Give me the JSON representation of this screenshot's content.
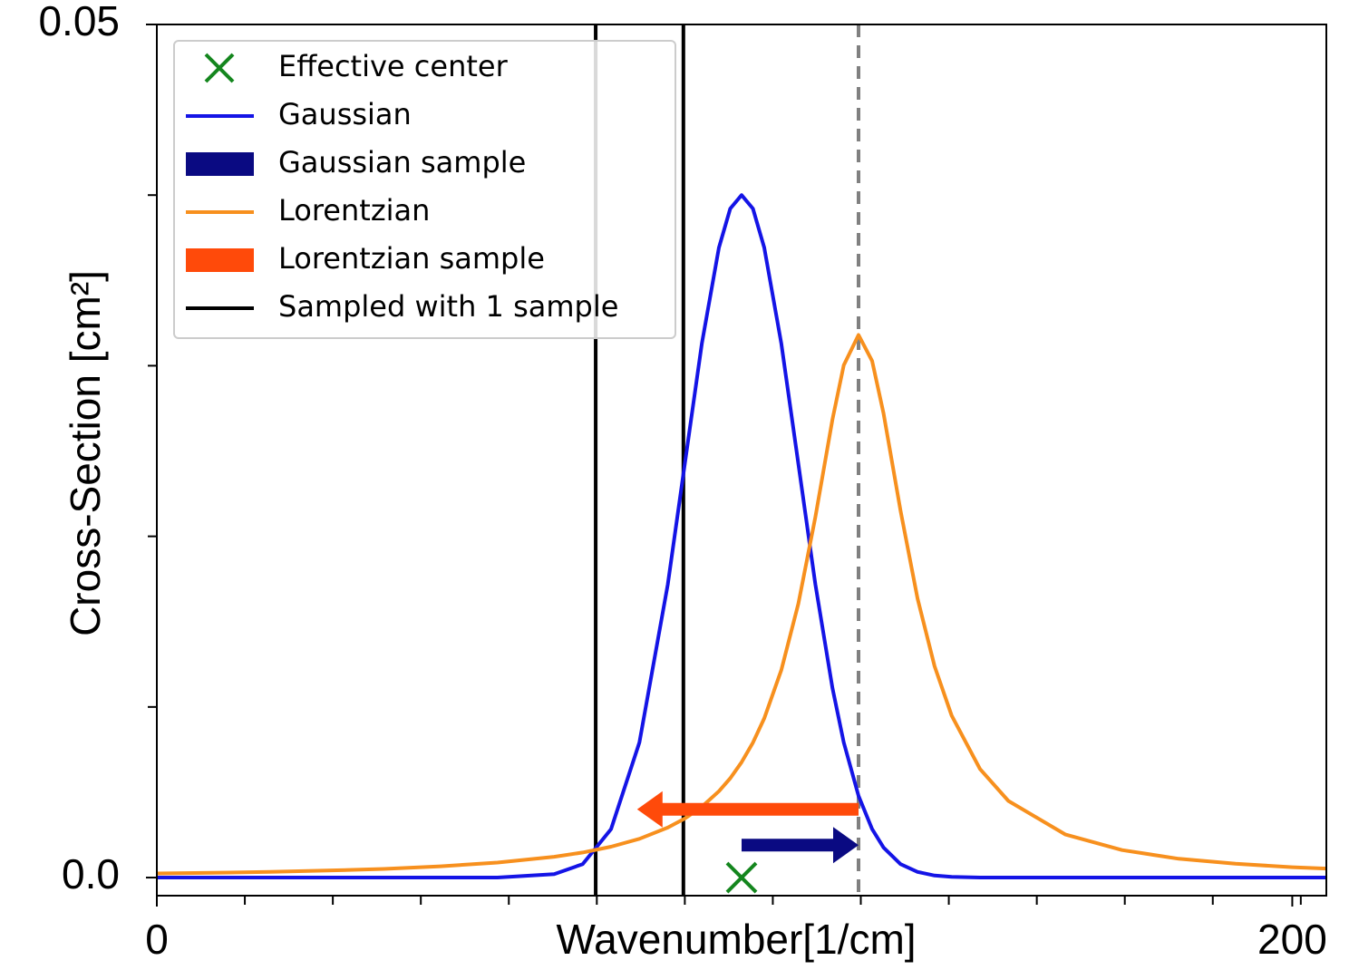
{
  "chart_data": {
    "type": "line",
    "x_label": "Wavenumber[1/cm]",
    "y_label": "Cross-Section [cm²]",
    "x": [
      0,
      10,
      20,
      30,
      40,
      50,
      60,
      70,
      75,
      80,
      85,
      90,
      93,
      96,
      99,
      101,
      103,
      105,
      107,
      110,
      113,
      116,
      119,
      121,
      123.6,
      126,
      128,
      131,
      134,
      137,
      140,
      145,
      150,
      160,
      170,
      180,
      190,
      200,
      206
    ],
    "series": [
      {
        "name": "Gaussian",
        "color": "#1414e6",
        "values": [
          0,
          0,
          0,
          0,
          0,
          0,
          0,
          0.0002,
          0.00079,
          0.00284,
          0.00792,
          0.01718,
          0.02426,
          0.03131,
          0.03692,
          0.03921,
          0.04,
          0.03921,
          0.03692,
          0.03131,
          0.02426,
          0.01718,
          0.01112,
          0.00792,
          0.00479,
          0.00284,
          0.00176,
          0.00079,
          0.00033,
          0.00012,
          4e-05,
          0,
          0,
          0,
          0,
          0,
          0,
          0,
          0
        ]
      },
      {
        "name": "Lorentzian",
        "color": "#f7901e",
        "values": [
          0.00024,
          0.00028,
          0.00034,
          0.00041,
          0.00051,
          0.00066,
          0.00088,
          0.00122,
          0.00147,
          0.00181,
          0.00227,
          0.00293,
          0.00346,
          0.00415,
          0.00506,
          0.00582,
          0.00676,
          0.00791,
          0.00933,
          0.01216,
          0.01605,
          0.02114,
          0.02684,
          0.03003,
          0.0318,
          0.03028,
          0.0272,
          0.02151,
          0.01635,
          0.01238,
          0.0095,
          0.00636,
          0.00449,
          0.00253,
          0.00161,
          0.0011,
          0.00081,
          0.00061,
          0.00053
        ]
      }
    ],
    "effective_center": {
      "name": "Effective center",
      "x": 103,
      "y": 0,
      "color": "#14861e"
    },
    "arrows": [
      {
        "name": "Gaussian sample",
        "color": "#0a0a82",
        "x_start": 103,
        "x_end": 123.6,
        "y": 0.0019
      },
      {
        "name": "Lorentzian sample",
        "color": "#ff4a0a",
        "x_start": 123.6,
        "x_end": 84.6,
        "y": 0.004
      }
    ],
    "sample_lines": {
      "name": "Sampled with 1 sample",
      "color": "#000000",
      "values": [
        77.3,
        92.75
      ]
    },
    "center_line": {
      "value": 123.6,
      "color": "#808080"
    },
    "xlim": [
      0,
      206
    ],
    "ylim": [
      -0.00106,
      0.05
    ],
    "xticks": [
      0,
      200
    ],
    "xminorticks": [
      15.5,
      31,
      46.5,
      62,
      77.5,
      93,
      108.5,
      124,
      139.5,
      155,
      170.5,
      186,
      201.5
    ],
    "yticks": [
      {
        "value": 0,
        "label": "0.0"
      },
      0.05
    ],
    "yminorticks": [
      0.01,
      0.02,
      0.03,
      0.04
    ],
    "legend": "upper left"
  }
}
